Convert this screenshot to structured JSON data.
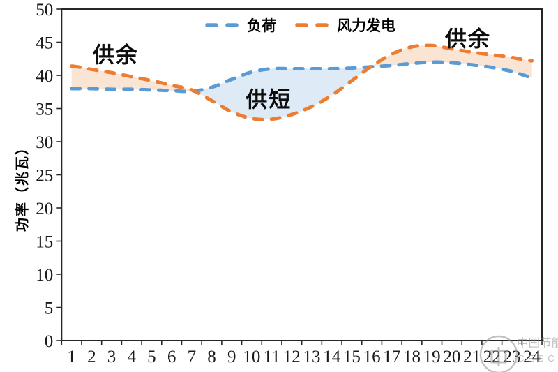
{
  "chart_data": {
    "type": "line",
    "title": "",
    "xlabel": "",
    "ylabel": "功率（兆瓦）",
    "ylim": [
      0,
      50
    ],
    "ytick_step": 5,
    "grid": false,
    "legend_position": "top",
    "x": [
      1,
      2,
      3,
      4,
      5,
      6,
      7,
      8,
      9,
      10,
      11,
      12,
      13,
      14,
      15,
      16,
      17,
      18,
      19,
      20,
      21,
      22,
      23,
      24
    ],
    "series": [
      {
        "name": "负荷",
        "color": "#5B9BD5",
        "style": "dashed",
        "values": [
          38.0,
          38.0,
          37.9,
          37.9,
          37.8,
          37.7,
          37.6,
          38.2,
          39.4,
          40.5,
          41.0,
          41.0,
          41.0,
          41.0,
          41.1,
          41.3,
          41.5,
          41.8,
          42.0,
          41.9,
          41.6,
          41.2,
          40.6,
          39.7
        ]
      },
      {
        "name": "风力发电",
        "color": "#ED7D31",
        "style": "dashed",
        "values": [
          41.4,
          40.9,
          40.4,
          39.8,
          39.2,
          38.5,
          37.8,
          36.2,
          34.5,
          33.5,
          33.4,
          34.1,
          35.3,
          37.0,
          39.2,
          41.4,
          43.2,
          44.3,
          44.5,
          44.0,
          43.5,
          43.1,
          42.7,
          42.2
        ]
      }
    ],
    "fills": {
      "surplus_color": "#FAE4D4",
      "shortage_color": "#DEEAF6",
      "surplus_meaning": "风力发电 > 负荷",
      "shortage_meaning": "负荷 > 风力发电"
    },
    "annotations": [
      {
        "text": "供余",
        "x": 3.2,
        "y": 43.4
      },
      {
        "text": "供短",
        "x": 10.85,
        "y": 36.6
      },
      {
        "text": "供余",
        "x": 20.8,
        "y": 45.8
      }
    ],
    "axis_color": "#262626",
    "tick_label_color": "#1a1a1a"
  },
  "watermark": {
    "site_name": "中国节能网",
    "site_abbr": "CESCN",
    "color": "#8f8f8f"
  }
}
